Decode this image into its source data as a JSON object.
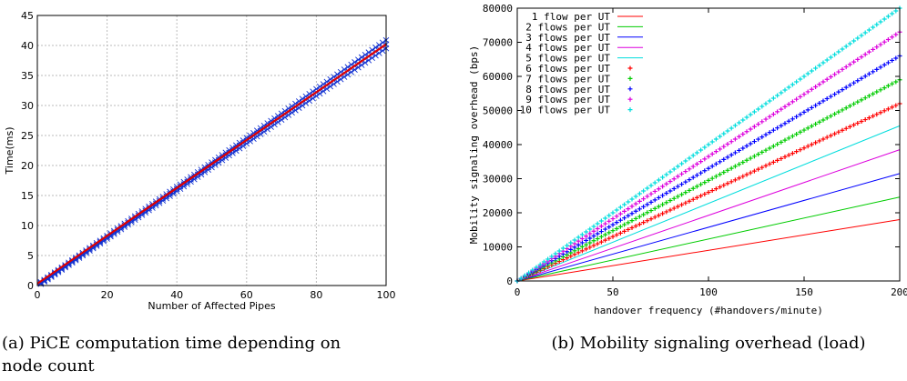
{
  "chart_data": [
    {
      "type": "scatter",
      "title": "",
      "xlabel": "Number of Affected Pipes",
      "ylabel": "Time(ms)",
      "xlim": [
        0,
        100
      ],
      "ylim": [
        0,
        45
      ],
      "xticks": [
        0,
        20,
        40,
        60,
        80,
        100
      ],
      "yticks": [
        0,
        5,
        10,
        15,
        20,
        25,
        30,
        35,
        40,
        45
      ],
      "grid": true,
      "series": [
        {
          "marker_color": "#1030d0",
          "marker": "x",
          "x": [
            1,
            100
          ],
          "y": [
            0.4,
            40.2
          ]
        },
        {
          "line_color": "#e00000",
          "x": [
            0,
            100
          ],
          "y": [
            0.3,
            40.2
          ]
        }
      ],
      "caption_line1": "(a) PiCE computation time depending on",
      "caption_line2": "node count"
    },
    {
      "type": "line",
      "title": "",
      "xlabel": "handover frequency (#handovers/minute)",
      "ylabel": "Mobility signaling overhead (bps)",
      "xlim": [
        0,
        200
      ],
      "ylim": [
        0,
        80000
      ],
      "xticks": [
        0,
        50,
        100,
        150,
        200
      ],
      "yticks": [
        0,
        10000,
        20000,
        30000,
        40000,
        50000,
        60000,
        70000,
        80000
      ],
      "grid": false,
      "legend_position": "top-left",
      "series": [
        {
          "name": "1 flow per UT",
          "color": "#ff0000",
          "style": "line",
          "x": [
            0,
            200
          ],
          "y": [
            0,
            18000
          ]
        },
        {
          "name": "2 flows per UT",
          "color": "#00cc00",
          "style": "line",
          "x": [
            0,
            200
          ],
          "y": [
            0,
            24600
          ]
        },
        {
          "name": "3 flows per UT",
          "color": "#0000ff",
          "style": "line",
          "x": [
            0,
            200
          ],
          "y": [
            0,
            31500
          ]
        },
        {
          "name": "4 flows per UT",
          "color": "#dd00dd",
          "style": "line",
          "x": [
            0,
            200
          ],
          "y": [
            0,
            38500
          ]
        },
        {
          "name": "5 flows per UT",
          "color": "#00dddd",
          "style": "line",
          "x": [
            0,
            200
          ],
          "y": [
            0,
            45500
          ]
        },
        {
          "name": "6 flows per UT",
          "color": "#ff0000",
          "style": "points",
          "x": [
            0,
            200
          ],
          "y": [
            0,
            52000
          ]
        },
        {
          "name": "7 flows per UT",
          "color": "#00cc00",
          "style": "points",
          "x": [
            0,
            200
          ],
          "y": [
            0,
            59000
          ]
        },
        {
          "name": "8 flows per UT",
          "color": "#0000ff",
          "style": "points",
          "x": [
            0,
            200
          ],
          "y": [
            0,
            66000
          ]
        },
        {
          "name": "9 flows per UT",
          "color": "#dd00dd",
          "style": "points",
          "x": [
            0,
            200
          ],
          "y": [
            0,
            73000
          ]
        },
        {
          "name": "10 flows per UT",
          "color": "#00dddd",
          "style": "points",
          "x": [
            0,
            200
          ],
          "y": [
            0,
            80000
          ]
        }
      ],
      "caption": "(b) Mobility signaling overhead (load)"
    }
  ]
}
